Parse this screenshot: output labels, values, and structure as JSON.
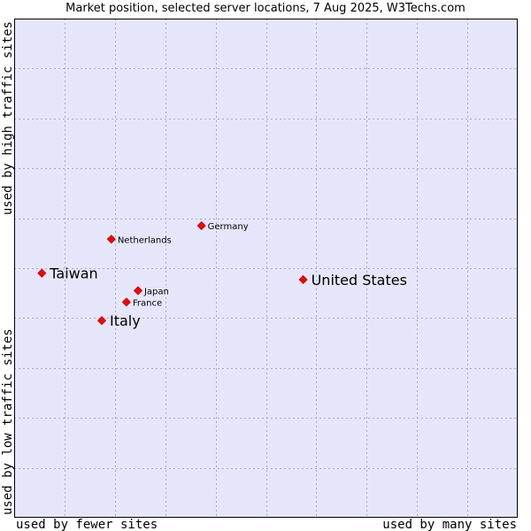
{
  "chart_data": {
    "type": "scatter",
    "title": "Market position, selected server locations, 7 Aug 2025, W3Techs.com",
    "xlabel_left": "used by fewer sites",
    "xlabel_right": "used by many sites",
    "ylabel_bottom": "used by low traffic sites",
    "ylabel_top": "used by high traffic sites",
    "xlim": [
      0,
      100
    ],
    "ylim": [
      0,
      100
    ],
    "grid": true,
    "colors": {
      "plot_bg": "#e6e6fa",
      "grid": "#a8a8c8",
      "border": "#000000",
      "marker": "#ff0000",
      "marker_edge": "#b00000"
    },
    "points": [
      {
        "label": "Taiwan",
        "x": 5.5,
        "y": 49,
        "size": "large"
      },
      {
        "label": "Italy",
        "x": 17.4,
        "y": 39.5,
        "size": "large"
      },
      {
        "label": "United States",
        "x": 57.4,
        "y": 47.7,
        "size": "large"
      },
      {
        "label": "Germany",
        "x": 37.2,
        "y": 58.5,
        "size": "small"
      },
      {
        "label": "Netherlands",
        "x": 19.3,
        "y": 55.8,
        "size": "small"
      },
      {
        "label": "Japan",
        "x": 24.6,
        "y": 45.5,
        "size": "small"
      },
      {
        "label": "France",
        "x": 22.3,
        "y": 43.2,
        "size": "small"
      }
    ]
  }
}
